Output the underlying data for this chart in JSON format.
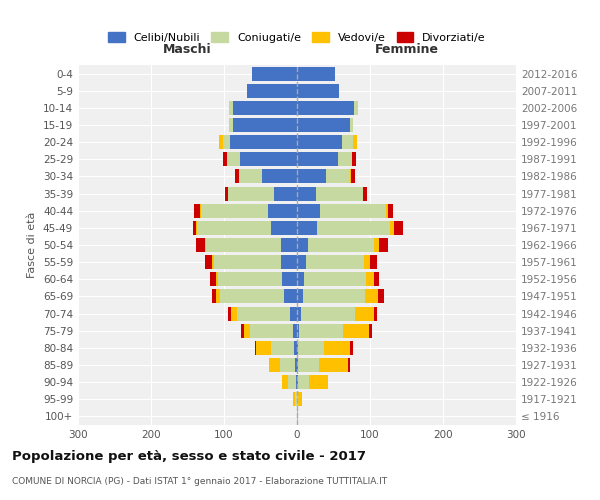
{
  "age_groups": [
    "100+",
    "95-99",
    "90-94",
    "85-89",
    "80-84",
    "75-79",
    "70-74",
    "65-69",
    "60-64",
    "55-59",
    "50-54",
    "45-49",
    "40-44",
    "35-39",
    "30-34",
    "25-29",
    "20-24",
    "15-19",
    "10-14",
    "5-9",
    "0-4"
  ],
  "birth_years": [
    "≤ 1916",
    "1917-1921",
    "1922-1926",
    "1927-1931",
    "1932-1936",
    "1937-1941",
    "1942-1946",
    "1947-1951",
    "1952-1956",
    "1957-1961",
    "1962-1966",
    "1967-1971",
    "1972-1976",
    "1977-1981",
    "1982-1986",
    "1987-1991",
    "1992-1996",
    "1997-2001",
    "2002-2006",
    "2007-2011",
    "2012-2016"
  ],
  "male_celibi": [
    0,
    0,
    2,
    3,
    4,
    6,
    10,
    18,
    20,
    22,
    22,
    35,
    40,
    32,
    48,
    78,
    92,
    88,
    88,
    68,
    62
  ],
  "male_coniugati": [
    0,
    3,
    10,
    20,
    32,
    58,
    72,
    88,
    88,
    92,
    102,
    102,
    92,
    62,
    32,
    18,
    10,
    5,
    5,
    0,
    0
  ],
  "male_vedovi": [
    0,
    2,
    8,
    15,
    20,
    8,
    8,
    5,
    3,
    2,
    2,
    1,
    1,
    0,
    0,
    0,
    5,
    0,
    0,
    0,
    0
  ],
  "male_divorziati": [
    0,
    0,
    0,
    0,
    2,
    5,
    5,
    5,
    8,
    10,
    12,
    5,
    8,
    5,
    5,
    5,
    0,
    0,
    0,
    0,
    0
  ],
  "fem_celibi": [
    0,
    0,
    2,
    2,
    2,
    3,
    5,
    8,
    10,
    12,
    15,
    28,
    32,
    26,
    40,
    56,
    62,
    72,
    78,
    57,
    52
  ],
  "fem_coniugati": [
    0,
    2,
    15,
    28,
    35,
    60,
    75,
    85,
    85,
    80,
    90,
    100,
    90,
    65,
    32,
    20,
    15,
    5,
    5,
    0,
    0
  ],
  "fem_vedovi": [
    2,
    5,
    25,
    40,
    35,
    35,
    25,
    18,
    10,
    8,
    8,
    5,
    2,
    0,
    2,
    0,
    5,
    0,
    0,
    0,
    0
  ],
  "fem_divorziati": [
    0,
    0,
    0,
    2,
    5,
    5,
    5,
    8,
    8,
    10,
    12,
    12,
    8,
    5,
    5,
    5,
    0,
    0,
    0,
    0,
    0
  ],
  "colors": {
    "celibi": "#4472c4",
    "coniugati": "#c5d9a0",
    "vedovi": "#ffc000",
    "divorziati": "#cc0000"
  },
  "xlim": 300,
  "title": "Popolazione per età, sesso e stato civile - 2017",
  "subtitle": "COMUNE DI NORCIA (PG) - Dati ISTAT 1° gennaio 2017 - Elaborazione TUTTITALIA.IT",
  "ylabel_left": "Fasce di età",
  "xlabel_left": "Maschi",
  "xlabel_right": "Femmine",
  "bg_color": "#ffffff",
  "plot_bg": "#f0f0f0",
  "grid_color": "#ffffff",
  "legend_labels": [
    "Celibi/Nubili",
    "Coniugati/e",
    "Vedovi/e",
    "Divorziati/e"
  ]
}
